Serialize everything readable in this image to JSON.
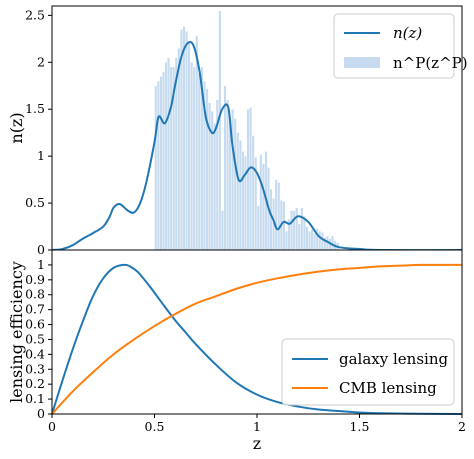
{
  "chart_data": [
    {
      "type": "line",
      "panel": "top",
      "ylabel": "n(z)",
      "xlabel": "",
      "xlim": [
        0,
        2
      ],
      "ylim": [
        0,
        2.6
      ],
      "xticks": [
        "0",
        "0.5",
        "1",
        "1.5",
        "2"
      ],
      "yticks": [
        "0",
        "0.5",
        "1",
        "1.5",
        "2",
        "2.5"
      ],
      "ytick_values": [
        0,
        0.5,
        1,
        1.5,
        2,
        2.5
      ],
      "legend_position": "top-right",
      "series": [
        {
          "name": "n(z)",
          "kind": "line",
          "color": "#1f77b4",
          "x": [
            0,
            0.05,
            0.1,
            0.15,
            0.2,
            0.25,
            0.28,
            0.3,
            0.33,
            0.37,
            0.4,
            0.43,
            0.46,
            0.5,
            0.52,
            0.55,
            0.58,
            0.6,
            0.63,
            0.66,
            0.69,
            0.72,
            0.75,
            0.78,
            0.8,
            0.83,
            0.86,
            0.88,
            0.91,
            0.94,
            0.97,
            1.0,
            1.03,
            1.06,
            1.08,
            1.1,
            1.13,
            1.16,
            1.2,
            1.25,
            1.3,
            1.35,
            1.4,
            1.5,
            1.6,
            2.0
          ],
          "y": [
            0.0,
            0.01,
            0.05,
            0.12,
            0.18,
            0.25,
            0.35,
            0.45,
            0.49,
            0.42,
            0.4,
            0.5,
            0.72,
            1.15,
            1.42,
            1.35,
            1.52,
            1.75,
            2.05,
            2.2,
            2.18,
            1.9,
            1.42,
            1.25,
            1.3,
            1.5,
            1.52,
            1.12,
            0.75,
            0.8,
            0.88,
            0.82,
            0.65,
            0.42,
            0.32,
            0.22,
            0.3,
            0.28,
            0.36,
            0.3,
            0.15,
            0.08,
            0.03,
            0.01,
            0.0,
            0.0
          ]
        },
        {
          "name": "n^P(z^P)",
          "kind": "histogram",
          "color": "#c6dbef",
          "bin_start": 0.5,
          "bin_width": 0.0125,
          "values": [
            1.75,
            1.8,
            1.85,
            1.9,
            2.0,
            2.05,
            1.95,
            1.95,
            2.05,
            2.15,
            2.35,
            2.38,
            2.33,
            2.2,
            2.0,
            1.95,
            2.28,
            1.88,
            1.95,
            1.8,
            1.72,
            1.57,
            1.48,
            1.35,
            1.6,
            2.55,
            0.42,
            1.75,
            1.6,
            1.4,
            1.5,
            1.4,
            1.25,
            1.17,
            1.05,
            1.0,
            1.5,
            1.52,
            1.22,
            0.99,
            0.47,
            1.02,
            0.92,
            1.05,
            0.88,
            0.65,
            0.55,
            0.75,
            0.72,
            0.53,
            0.52,
            0.2,
            0.33,
            0.42,
            0.42,
            0.45,
            0.28,
            0.45,
            0.36,
            0.25,
            0.2,
            0.22,
            0.18,
            0.23,
            0.2,
            0.19,
            0.13,
            0.15,
            0.12,
            0.15,
            0.1,
            0.08
          ]
        }
      ]
    },
    {
      "type": "line",
      "panel": "bottom",
      "ylabel": "lensing efficiency",
      "xlabel": "z",
      "xlim": [
        0,
        2
      ],
      "ylim": [
        0,
        1.1
      ],
      "xticks": [
        "0",
        "0.5",
        "1",
        "1.5",
        "2"
      ],
      "yticks": [
        "0",
        "0.1",
        "0.2",
        "0.3",
        "0.4",
        "0.5",
        "0.6",
        "0.7",
        "0.8",
        "0.9",
        "1"
      ],
      "ytick_values": [
        0,
        0.1,
        0.2,
        0.3,
        0.4,
        0.5,
        0.6,
        0.7,
        0.8,
        0.9,
        1.0
      ],
      "legend_position": "bottom-right",
      "series": [
        {
          "name": "galaxy lensing",
          "color": "#1f77b4",
          "x": [
            0,
            0.05,
            0.1,
            0.15,
            0.2,
            0.25,
            0.3,
            0.35,
            0.38,
            0.42,
            0.48,
            0.55,
            0.6,
            0.65,
            0.7,
            0.8,
            0.9,
            1.0,
            1.1,
            1.2,
            1.3,
            1.4,
            1.5,
            1.6,
            1.8,
            2.0
          ],
          "y": [
            0.0,
            0.22,
            0.43,
            0.62,
            0.79,
            0.91,
            0.98,
            1.0,
            0.99,
            0.95,
            0.85,
            0.72,
            0.63,
            0.55,
            0.47,
            0.33,
            0.21,
            0.13,
            0.08,
            0.05,
            0.03,
            0.02,
            0.01,
            0.005,
            0.002,
            0.0
          ]
        },
        {
          "name": "CMB lensing",
          "color": "#ff7f0e",
          "x": [
            0,
            0.1,
            0.2,
            0.3,
            0.4,
            0.5,
            0.6,
            0.7,
            0.8,
            0.9,
            1.0,
            1.1,
            1.2,
            1.3,
            1.4,
            1.5,
            1.6,
            1.7,
            1.8,
            1.9,
            2.0
          ],
          "y": [
            0.0,
            0.15,
            0.28,
            0.4,
            0.5,
            0.59,
            0.67,
            0.74,
            0.79,
            0.84,
            0.88,
            0.91,
            0.935,
            0.955,
            0.97,
            0.98,
            0.99,
            0.995,
            1.0,
            1.0,
            1.0
          ]
        }
      ]
    }
  ]
}
